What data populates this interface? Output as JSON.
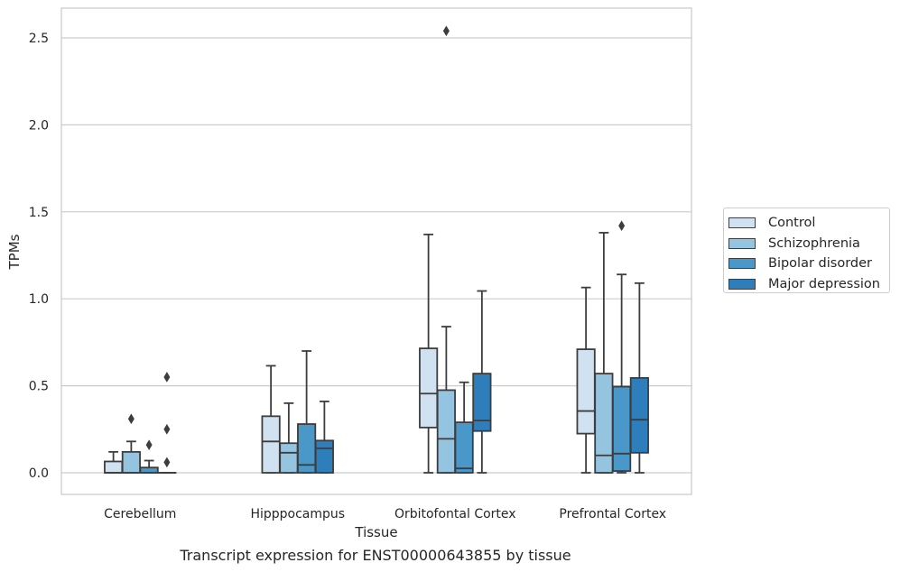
{
  "chart_data": {
    "type": "box",
    "title": "",
    "caption": "Transcript expression for ENST00000643855 by tissue",
    "xlabel": "Tissue",
    "ylabel": "TPMs",
    "ylim": [
      -0.125,
      2.675
    ],
    "yticks": [
      0.0,
      0.5,
      1.0,
      1.5,
      2.0,
      2.5
    ],
    "ytick_labels": [
      "0.0",
      "0.5",
      "1.0",
      "1.5",
      "2.0",
      "2.5"
    ],
    "grid": "horizontal",
    "legend_position": "right",
    "categories": [
      "Cerebellum",
      "Hipppocampus",
      "Orbitofontal Cortex",
      "Prefrontal Cortex"
    ],
    "series": [
      {
        "name": "Control",
        "color": "#d0e1f2",
        "boxes": [
          {
            "whislo": 0.0,
            "q1": 0.0,
            "med": 0.0,
            "q3": 0.065,
            "whishi": 0.12,
            "fliers": []
          },
          {
            "whislo": 0.0,
            "q1": 0.0,
            "med": 0.18,
            "q3": 0.325,
            "whishi": 0.615,
            "fliers": []
          },
          {
            "whislo": 0.0,
            "q1": 0.26,
            "med": 0.455,
            "q3": 0.715,
            "whishi": 1.37,
            "fliers": []
          },
          {
            "whislo": 0.0,
            "q1": 0.225,
            "med": 0.355,
            "q3": 0.71,
            "whishi": 1.065,
            "fliers": []
          }
        ]
      },
      {
        "name": "Schizophrenia",
        "color": "#94c4df",
        "boxes": [
          {
            "whislo": 0.0,
            "q1": 0.0,
            "med": 0.0,
            "q3": 0.12,
            "whishi": 0.18,
            "fliers": [
              0.31
            ]
          },
          {
            "whislo": 0.0,
            "q1": 0.0,
            "med": 0.115,
            "q3": 0.17,
            "whishi": 0.4,
            "fliers": []
          },
          {
            "whislo": 0.0,
            "q1": 0.0,
            "med": 0.195,
            "q3": 0.475,
            "whishi": 0.84,
            "fliers": [
              2.54
            ]
          },
          {
            "whislo": 0.0,
            "q1": 0.0,
            "med": 0.1,
            "q3": 0.57,
            "whishi": 1.38,
            "fliers": []
          }
        ]
      },
      {
        "name": "Bipolar disorder",
        "color": "#4a98c9",
        "boxes": [
          {
            "whislo": 0.0,
            "q1": 0.0,
            "med": 0.0,
            "q3": 0.03,
            "whishi": 0.07,
            "fliers": [
              0.16
            ]
          },
          {
            "whislo": 0.0,
            "q1": 0.0,
            "med": 0.045,
            "q3": 0.28,
            "whishi": 0.7,
            "fliers": []
          },
          {
            "whislo": 0.0,
            "q1": 0.0,
            "med": 0.025,
            "q3": 0.29,
            "whishi": 0.52,
            "fliers": []
          },
          {
            "whislo": 0.0,
            "q1": 0.01,
            "med": 0.11,
            "q3": 0.495,
            "whishi": 1.14,
            "fliers": [
              1.42
            ]
          }
        ]
      },
      {
        "name": "Major depression",
        "color": "#2e7ebc",
        "boxes": [
          {
            "whislo": 0.0,
            "q1": 0.0,
            "med": 0.0,
            "q3": 0.0,
            "whishi": 0.0,
            "fliers": [
              0.06,
              0.25,
              0.55
            ]
          },
          {
            "whislo": 0.0,
            "q1": 0.0,
            "med": 0.14,
            "q3": 0.185,
            "whishi": 0.41,
            "fliers": []
          },
          {
            "whislo": 0.0,
            "q1": 0.24,
            "med": 0.3,
            "q3": 0.57,
            "whishi": 1.045,
            "fliers": []
          },
          {
            "whislo": 0.0,
            "q1": 0.115,
            "med": 0.305,
            "q3": 0.545,
            "whishi": 1.09,
            "fliers": []
          }
        ]
      }
    ]
  }
}
